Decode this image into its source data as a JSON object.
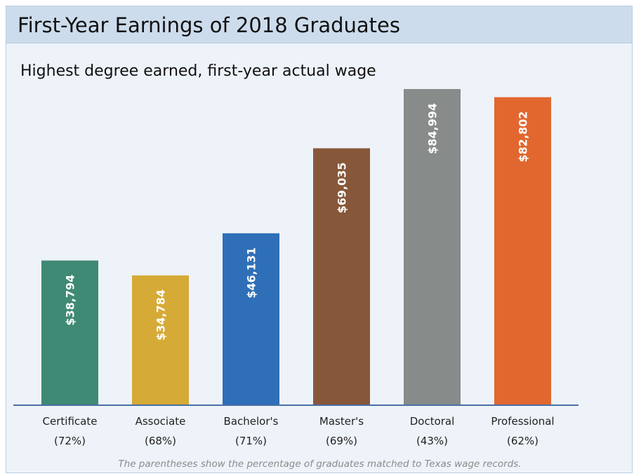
{
  "chart_data": {
    "type": "bar",
    "title": "First-Year Earnings of 2018 Graduates",
    "subtitle": "Highest degree earned, first-year actual wage",
    "categories": [
      "Certificate",
      "Associate",
      "Bachelor's",
      "Master's",
      "Doctoral",
      "Professional"
    ],
    "percentages": [
      "(72%)",
      "(68%)",
      "(71%)",
      "(69%)",
      "(43%)",
      "(62%)"
    ],
    "values": [
      38794,
      34784,
      46131,
      69035,
      84994,
      82802
    ],
    "value_labels": [
      "$38,794",
      "$34,784",
      "$46,131",
      "$69,035",
      "$84,994",
      "$82,802"
    ],
    "colors": [
      "#3f8a74",
      "#d6aa36",
      "#2f6fb8",
      "#87573a",
      "#878b89",
      "#e2672f"
    ],
    "axis_color": "#4a6fa5",
    "ylim": [
      0,
      85000
    ],
    "note": "The parentheses show the percentage of graduates matched to Texas wage records."
  }
}
